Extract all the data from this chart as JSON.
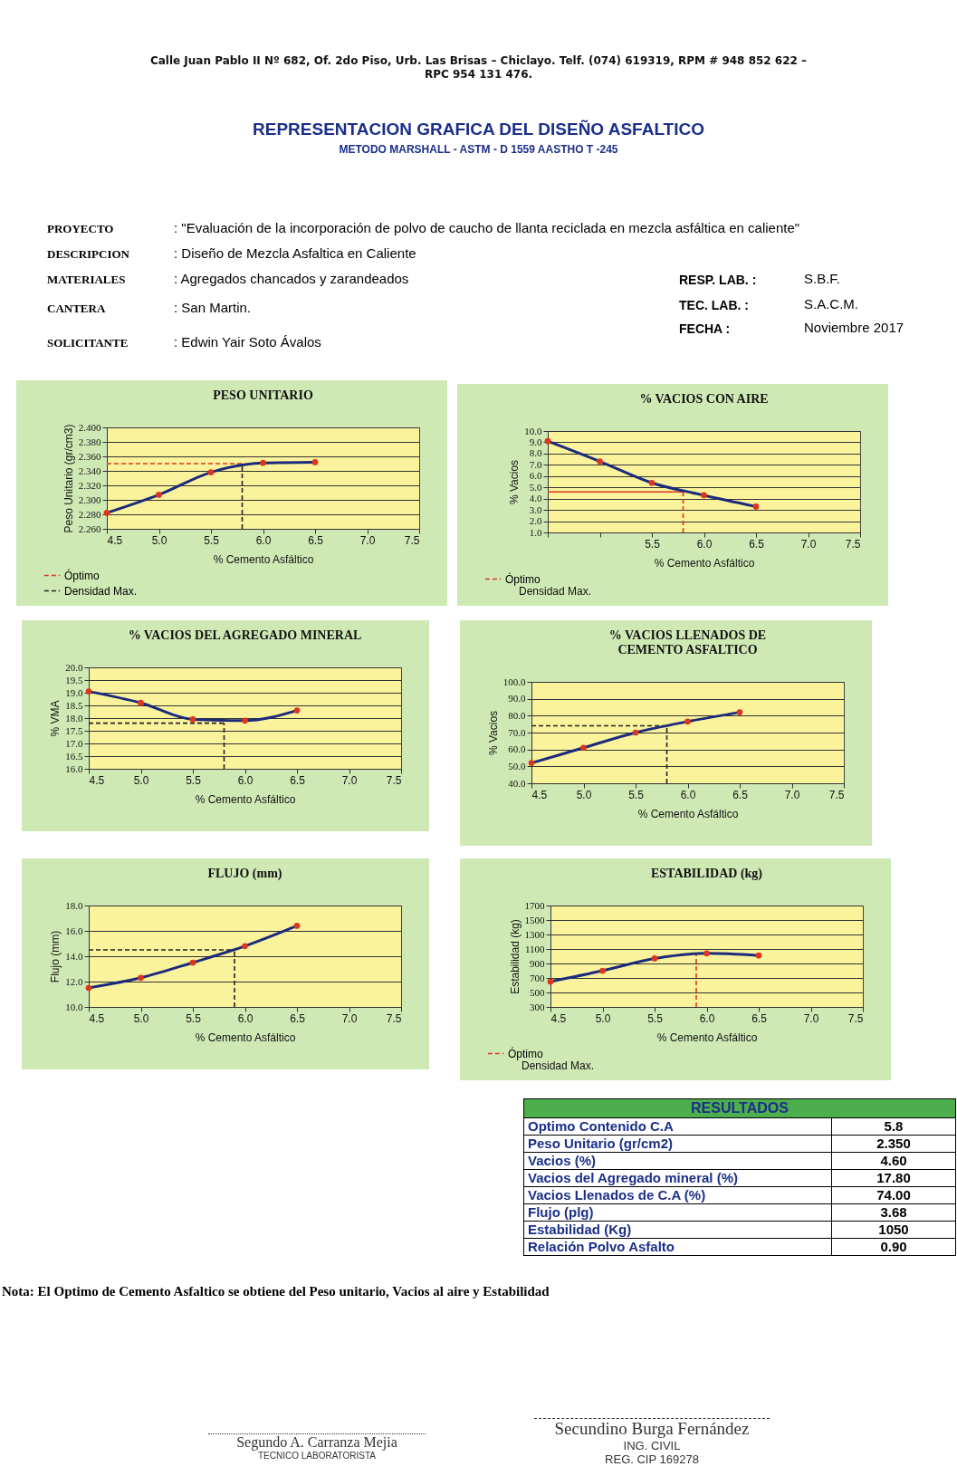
{
  "chart_data": [
    {
      "type": "other",
      "title": "REPRESENTACION GRAFICA DEL DISEÑO ASFALTICO",
      "subtitle": "METODO MARSHALL -  ASTM - D 1559 AASTHO T -245",
      "annotations": [
        "Calle Juan Pablo II Nº 682, Of. 2do Piso, Urb. Las Brisas – Chiclayo. Telf. (074)  619319,  RPM # 948 852 622 –",
        "RPC 954 131 476."
      ]
    },
    {
      "type": "other",
      "annotations": [
        "PROYECTO",
        ": \"Evaluación de la incorporación de polvo de caucho de llanta reciclada en mezcla asfáltica en caliente\"",
        "DESCRIPCION",
        ": Diseño de Mezcla Asfaltica en Caliente",
        "MATERIALES",
        ": Agregados chancados y zarandeados",
        "CANTERA",
        ": San Martin.",
        "SOLICITANTE",
        ": Edwin Yair Soto Ávalos",
        "RESP. LAB. :",
        "S.B.F.",
        "TEC. LAB. :",
        "S.A.C.M.",
        "FECHA :",
        "Noviembre 2017"
      ]
    },
    {
      "type": "line",
      "title": "PESO UNITARIO",
      "xlabel": "% Cemento Asfáltico",
      "ylabel": "Peso Unitario (gr/cm3)",
      "x": [
        4.5,
        5.0,
        5.5,
        6.0,
        6.5
      ],
      "series": [
        {
          "color": "#1c2a7c",
          "values": [
            2.282,
            2.307,
            2.338,
            2.351,
            2.352
          ]
        }
      ],
      "xlim": [
        4.5,
        7.5
      ],
      "xticks": [
        {
          "value": 4.5,
          "label": "4.5"
        },
        {
          "value": 5,
          "label": "5.0"
        },
        {
          "value": 5.5,
          "label": "5.5"
        },
        {
          "value": 6,
          "label": "6.0"
        },
        {
          "value": 6.5,
          "label": "6.5"
        },
        {
          "value": 7,
          "label": "7.0"
        },
        {
          "value": 7.5,
          "label": "7.5"
        }
      ],
      "ylim": [
        2.26,
        2.4
      ],
      "yticks": [
        {
          "value": 2.26,
          "label": "2.260"
        },
        {
          "value": 2.28,
          "label": "2.280"
        },
        {
          "value": 2.3,
          "label": "2.300"
        },
        {
          "value": 2.32,
          "label": "2.320"
        },
        {
          "value": 2.34,
          "label": "2.340"
        },
        {
          "value": 2.36,
          "label": "2.360"
        },
        {
          "value": 2.38,
          "label": "2.380"
        },
        {
          "value": 2.4,
          "label": "2.400"
        }
      ],
      "ref_lines": [
        {
          "axis": "y",
          "value": 2.35,
          "label": "Óptimo",
          "color": "#d9381e",
          "line_style": "dashed"
        },
        {
          "axis": "x",
          "value": 5.8,
          "label": "Densidad Max.",
          "color": "#222222",
          "line_style": "dashed"
        }
      ],
      "grid": "y",
      "marker": "circle",
      "legend": "bottom left"
    },
    {
      "type": "line",
      "title": "% VACIOS CON AIRE",
      "xlabel": "% Cemento Asfáltico",
      "ylabel": "% Vacios",
      "x": [
        4.5,
        5.0,
        5.5,
        6.0,
        6.5
      ],
      "series": [
        {
          "color": "#1c2a7c",
          "values": [
            9.1,
            7.3,
            5.4,
            4.3,
            3.3
          ]
        }
      ],
      "xlim": [
        4.5,
        7.5
      ],
      "xticks": [
        {
          "value": 4.5,
          "label": null
        },
        {
          "value": 5,
          "label": null
        },
        {
          "value": 5.5,
          "label": "5.5"
        },
        {
          "value": 6,
          "label": "6.0"
        },
        {
          "value": 6.5,
          "label": "6.5"
        },
        {
          "value": 7,
          "label": "7.0"
        },
        {
          "value": 7.5,
          "label": "7.5"
        }
      ],
      "ylim": [
        1,
        10
      ],
      "yticks": [
        {
          "value": 1,
          "label": "1.0"
        },
        {
          "value": 2,
          "label": "2.0"
        },
        {
          "value": 3,
          "label": "3.0"
        },
        {
          "value": 4,
          "label": "4.0"
        },
        {
          "value": 5,
          "label": "5.0"
        },
        {
          "value": 6,
          "label": "6.0"
        },
        {
          "value": 7,
          "label": "7.0"
        },
        {
          "value": 8,
          "label": "8.0"
        },
        {
          "value": 9,
          "label": "9.0"
        },
        {
          "value": 10,
          "label": "10.0"
        }
      ],
      "ref_lines": [
        {
          "axis": "y",
          "value": 4.6,
          "color": "#d9381e",
          "line_style": "solid"
        },
        {
          "axis": "x",
          "value": 5.8,
          "label": "Óptimo",
          "color": "#d9381e",
          "line_style": "dashed"
        }
      ],
      "annotations": [
        "Densidad Max."
      ],
      "grid": "y",
      "marker": "circle",
      "legend": "bottom left"
    },
    {
      "type": "line",
      "title": "% VACIOS DEL AGREGADO MINERAL",
      "xlabel": "% Cemento Asfáltico",
      "ylabel": "% VMA",
      "x": [
        4.5,
        5.0,
        5.5,
        6.0,
        6.5
      ],
      "series": [
        {
          "color": "#1c2a7c",
          "values": [
            19.05,
            18.6,
            17.95,
            17.9,
            18.3
          ]
        }
      ],
      "xlim": [
        4.5,
        7.5
      ],
      "xticks": [
        {
          "value": 4.5,
          "label": "4.5"
        },
        {
          "value": 5,
          "label": "5.0"
        },
        {
          "value": 5.5,
          "label": "5.5"
        },
        {
          "value": 6,
          "label": "6.0"
        },
        {
          "value": 6.5,
          "label": "6.5"
        },
        {
          "value": 7,
          "label": "7.0"
        },
        {
          "value": 7.5,
          "label": "7.5"
        }
      ],
      "ylim": [
        16,
        20
      ],
      "yticks": [
        {
          "value": 16,
          "label": "16.0"
        },
        16.5,
        {
          "value": 17,
          "label": "17.0"
        },
        17.5,
        {
          "value": 18,
          "label": "18.0"
        },
        18.5,
        {
          "value": 19,
          "label": "19.0"
        },
        19.5,
        {
          "value": 20,
          "label": "20.0"
        }
      ],
      "ref_lines": [
        {
          "axis": "y",
          "value": 17.8,
          "color": "#222222",
          "line_style": "dashed"
        },
        {
          "axis": "x",
          "value": 5.8,
          "color": "#222222",
          "line_style": "dashed"
        }
      ],
      "grid": "y",
      "marker": "circle"
    },
    {
      "type": "line",
      "title": "% VACIOS LLENADOS DE CEMENTO ASFALTICO",
      "xlabel": "% Cemento Asfáltico",
      "ylabel": "% Vacios",
      "x": [
        4.5,
        5.0,
        5.5,
        6.0,
        6.5
      ],
      "series": [
        {
          "color": "#1c2a7c",
          "values": [
            52,
            61,
            70,
            76.5,
            82
          ]
        }
      ],
      "xlim": [
        4.5,
        7.5
      ],
      "xticks": [
        {
          "value": 4.5,
          "label": "4.5"
        },
        {
          "value": 5,
          "label": "5.0"
        },
        {
          "value": 5.5,
          "label": "5.5"
        },
        {
          "value": 6,
          "label": "6.0"
        },
        {
          "value": 6.5,
          "label": "6.5"
        },
        {
          "value": 7,
          "label": "7.0"
        },
        {
          "value": 7.5,
          "label": "7.5"
        }
      ],
      "ylim": [
        40,
        100
      ],
      "yticks": [
        {
          "value": 40,
          "label": "40.0"
        },
        {
          "value": 50,
          "label": "50.0"
        },
        {
          "value": 60,
          "label": "60.0"
        },
        {
          "value": 70,
          "label": "70.0"
        },
        {
          "value": 80,
          "label": "80.0"
        },
        {
          "value": 90,
          "label": "90.0"
        },
        {
          "value": 100,
          "label": "100.0"
        }
      ],
      "ref_lines": [
        {
          "axis": "y",
          "value": 74,
          "color": "#222222",
          "line_style": "dashed"
        },
        {
          "axis": "x",
          "value": 5.8,
          "color": "#222222",
          "line_style": "dashed"
        }
      ],
      "grid": "y",
      "marker": "circle"
    },
    {
      "type": "line",
      "title": "FLUJO (mm)",
      "xlabel": "% Cemento Asfáltico",
      "ylabel": "Flujo (mm)",
      "x": [
        4.5,
        5.0,
        5.5,
        6.0,
        6.5
      ],
      "series": [
        {
          "color": "#1c2a7c",
          "values": [
            11.5,
            12.3,
            13.5,
            14.8,
            16.4
          ]
        }
      ],
      "xlim": [
        4.5,
        7.5
      ],
      "xticks": [
        {
          "value": 4.5,
          "label": "4.5"
        },
        {
          "value": 5,
          "label": "5.0"
        },
        {
          "value": 5.5,
          "label": "5.5"
        },
        {
          "value": 6,
          "label": "6.0"
        },
        {
          "value": 6.5,
          "label": "6.5"
        },
        {
          "value": 7,
          "label": "7.0"
        },
        {
          "value": 7.5,
          "label": "7.5"
        }
      ],
      "ylim": [
        10,
        18
      ],
      "yticks": [
        {
          "value": 10,
          "label": "10.0"
        },
        {
          "value": 12,
          "label": "12.0"
        },
        {
          "value": 14,
          "label": "14.0"
        },
        {
          "value": 16,
          "label": "16.0"
        },
        {
          "value": 18,
          "label": "18.0"
        }
      ],
      "ref_lines": [
        {
          "axis": "y",
          "value": 14.5,
          "color": "#222222",
          "line_style": "dashed"
        },
        {
          "axis": "x",
          "value": 5.9,
          "color": "#222222",
          "line_style": "dashed"
        }
      ],
      "grid": "y",
      "marker": "circle"
    },
    {
      "type": "line",
      "title": "ESTABILIDAD (kg)",
      "xlabel": "% Cemento Asfáltico",
      "ylabel": "Estabilidad (kg)",
      "x": [
        4.5,
        5.0,
        5.5,
        6.0,
        6.5
      ],
      "series": [
        {
          "color": "#1c2a7c",
          "values": [
            650,
            800,
            970,
            1040,
            1010
          ]
        }
      ],
      "xlim": [
        4.5,
        7.5
      ],
      "xticks": [
        {
          "value": 4.5,
          "label": "4.5"
        },
        {
          "value": 5,
          "label": "5.0"
        },
        {
          "value": 5.5,
          "label": "5.5"
        },
        {
          "value": 6,
          "label": "6.0"
        },
        {
          "value": 6.5,
          "label": "6.5"
        },
        {
          "value": 7,
          "label": "7.0"
        },
        {
          "value": 7.5,
          "label": "7.5"
        }
      ],
      "ylim": [
        300,
        1700
      ],
      "yticks": [
        300,
        500,
        700,
        900,
        {
          "value": 1100,
          "label": "1100"
        },
        {
          "value": 1300,
          "label": "1300"
        },
        {
          "value": 1500,
          "label": "1500"
        },
        {
          "value": 1700,
          "label": "1700"
        }
      ],
      "ref_lines": [
        {
          "axis": "x",
          "value": 5.9,
          "label": "Óptimo",
          "color": "#d9381e",
          "line_style": "dashed"
        }
      ],
      "annotations": [
        "Densidad Max."
      ],
      "grid": "y",
      "marker": "circle",
      "legend": "bottom left"
    },
    {
      "type": "other",
      "title": "RESULTADOS",
      "annotations": [
        "Optimo Contenido C.A",
        "5.8",
        "Peso Unitario (gr/cm2)",
        "2.350",
        "Vacios (%)",
        "4.60",
        "Vacios del Agregado mineral (%)",
        "17.80",
        "Vacios Llenados de C.A (%)",
        "74.00",
        "Flujo (plg)",
        "3.68",
        "Estabilidad (Kg)",
        "1050",
        "Relación Polvo Asfalto",
        "0.90"
      ]
    },
    {
      "type": "other",
      "annotations": [
        "Nota:  El Optimo de Cemento Asfaltico se obtiene del Peso unitario, Vacios al aire y Estabilidad",
        "Segundo A. Carranza Mejia",
        "TECNICO LABORATORISTA",
        "Secundino Burga Fernández",
        "ING. CIVIL",
        "REG. CIP 169278"
      ]
    }
  ]
}
